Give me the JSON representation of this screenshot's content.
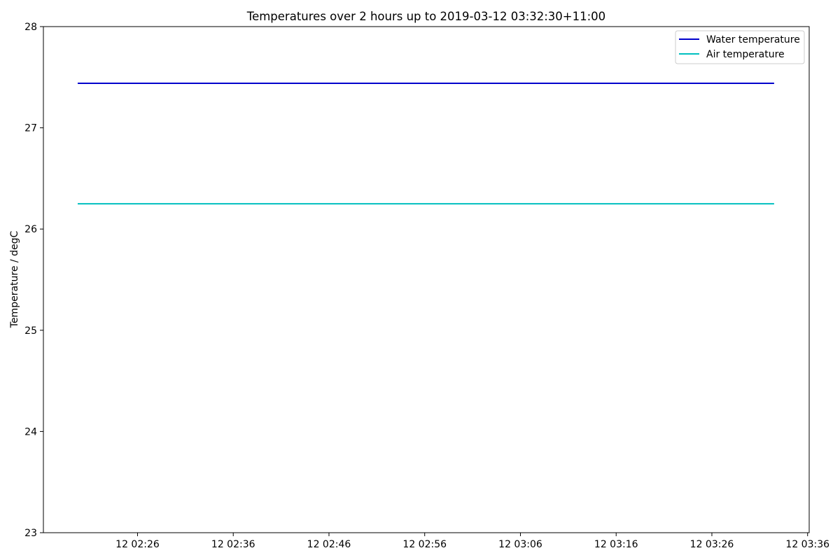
{
  "chart_data": {
    "type": "line",
    "title": "Temperatures over 2 hours up to 2019-03-12 03:32:30+11:00",
    "xlabel": "",
    "ylabel": "Temperature / degC",
    "x_is_time": true,
    "xlim": [
      "2019-03-12 02:16:10",
      "2019-03-12 03:36:10"
    ],
    "ylim": [
      23,
      28
    ],
    "y_ticks": [
      23,
      24,
      25,
      26,
      27,
      28
    ],
    "x_ticks": [
      {
        "t": "2019-03-12 02:26",
        "label": "12 02:26"
      },
      {
        "t": "2019-03-12 02:36",
        "label": "12 02:36"
      },
      {
        "t": "2019-03-12 02:46",
        "label": "12 02:46"
      },
      {
        "t": "2019-03-12 02:56",
        "label": "12 02:56"
      },
      {
        "t": "2019-03-12 03:06",
        "label": "12 03:06"
      },
      {
        "t": "2019-03-12 03:16",
        "label": "12 03:16"
      },
      {
        "t": "2019-03-12 03:26",
        "label": "12 03:26"
      },
      {
        "t": "2019-03-12 03:36",
        "label": "12 03:36"
      }
    ],
    "grid": false,
    "legend_position": "top-right",
    "series": [
      {
        "name": "Water temperature",
        "color": "#0000cc",
        "x": [
          "2019-03-12 02:19:45",
          "2019-03-12 03:32:30"
        ],
        "y": [
          27.44,
          27.44
        ]
      },
      {
        "name": "Air temperature",
        "color": "#00bfbf",
        "x": [
          "2019-03-12 02:19:45",
          "2019-03-12 03:32:30"
        ],
        "y": [
          26.25,
          26.25
        ]
      }
    ]
  }
}
